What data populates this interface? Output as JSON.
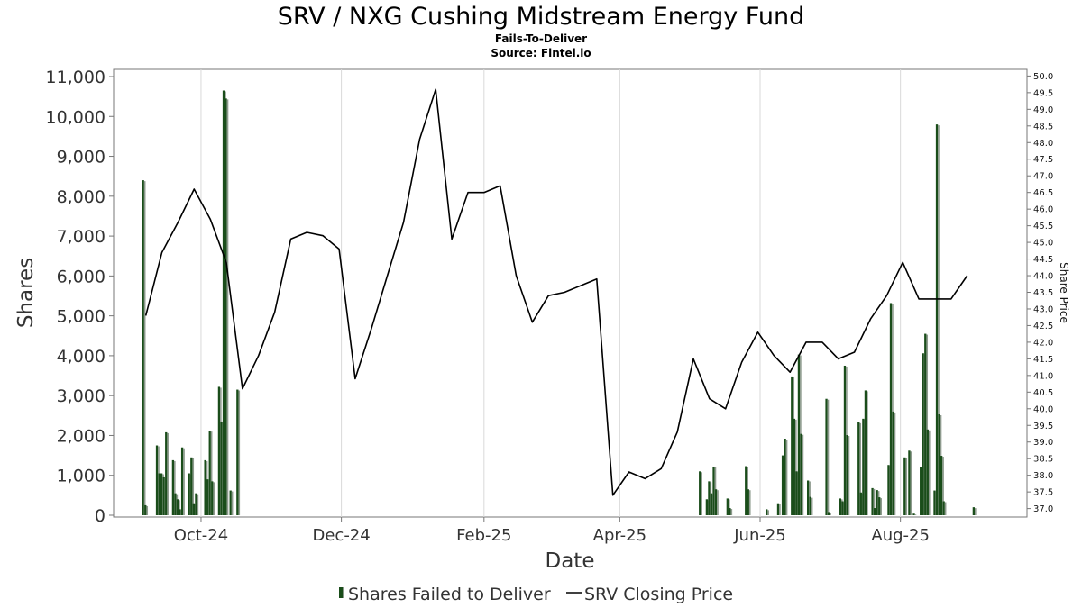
{
  "chart_data": {
    "type": "bar+line",
    "title": "SRV / NXG Cushing Midstream Energy Fund",
    "subtitle": "Fails-To-Deliver",
    "source": "Source: Fintel.io",
    "xlabel": "Date",
    "ylabel": "Shares",
    "y2label": "Share Price",
    "ylim": [
      0,
      11000
    ],
    "y2lim": [
      36.8,
      50.2
    ],
    "x_range": [
      "2024-08-24",
      "2025-09-25"
    ],
    "grid": true,
    "legend_position": "bottom",
    "x_ticks": [
      {
        "date": "2024-10-01",
        "label": "Oct-24"
      },
      {
        "date": "2024-12-01",
        "label": "Dec-24"
      },
      {
        "date": "2025-02-01",
        "label": "Feb-25"
      },
      {
        "date": "2025-04-01",
        "label": "Apr-25"
      },
      {
        "date": "2025-06-01",
        "label": "Jun-25"
      },
      {
        "date": "2025-08-01",
        "label": "Aug-25"
      }
    ],
    "y_ticks": [
      {
        "value": 0,
        "label": "0"
      },
      {
        "value": 1000,
        "label": "1,000"
      },
      {
        "value": 2000,
        "label": "2,000"
      },
      {
        "value": 3000,
        "label": "3,000"
      },
      {
        "value": 4000,
        "label": "4,000"
      },
      {
        "value": 5000,
        "label": "5,000"
      },
      {
        "value": 6000,
        "label": "6,000"
      },
      {
        "value": 7000,
        "label": "7,000"
      },
      {
        "value": 8000,
        "label": "8,000"
      },
      {
        "value": 9000,
        "label": "9,000"
      },
      {
        "value": 10000,
        "label": "10,000"
      },
      {
        "value": 11000,
        "label": "11,000"
      }
    ],
    "y2_ticks": [
      {
        "value": 37.0,
        "label": "37.0"
      },
      {
        "value": 37.5,
        "label": "37.5"
      },
      {
        "value": 38.0,
        "label": "38.0"
      },
      {
        "value": 38.5,
        "label": "38.5"
      },
      {
        "value": 39.0,
        "label": "39.0"
      },
      {
        "value": 39.5,
        "label": "39.5"
      },
      {
        "value": 40.0,
        "label": "40.0"
      },
      {
        "value": 40.5,
        "label": "40.5"
      },
      {
        "value": 41.0,
        "label": "41.0"
      },
      {
        "value": 41.5,
        "label": "41.5"
      },
      {
        "value": 42.0,
        "label": "42.0"
      },
      {
        "value": 42.5,
        "label": "42.5"
      },
      {
        "value": 43.0,
        "label": "43.0"
      },
      {
        "value": 43.5,
        "label": "43.5"
      },
      {
        "value": 44.0,
        "label": "44.0"
      },
      {
        "value": 44.5,
        "label": "44.5"
      },
      {
        "value": 45.0,
        "label": "45.0"
      },
      {
        "value": 45.5,
        "label": "45.5"
      },
      {
        "value": 46.0,
        "label": "46.0"
      },
      {
        "value": 46.5,
        "label": "46.5"
      },
      {
        "value": 47.0,
        "label": "47.0"
      },
      {
        "value": 47.5,
        "label": "47.5"
      },
      {
        "value": 48.0,
        "label": "48.0"
      },
      {
        "value": 48.5,
        "label": "48.5"
      },
      {
        "value": 49.0,
        "label": "49.0"
      },
      {
        "value": 49.5,
        "label": "49.5"
      },
      {
        "value": 50.0,
        "label": "50.0"
      }
    ],
    "series": [
      {
        "name": "Shares Failed to Deliver",
        "kind": "bar",
        "color": "#1a4d1a",
        "points": [
          [
            "2024-09-06",
            8400
          ],
          [
            "2024-09-07",
            250
          ],
          [
            "2024-09-12",
            1750
          ],
          [
            "2024-09-13",
            1050
          ],
          [
            "2024-09-14",
            1050
          ],
          [
            "2024-09-15",
            950
          ],
          [
            "2024-09-16",
            2080
          ],
          [
            "2024-09-19",
            1380
          ],
          [
            "2024-09-20",
            550
          ],
          [
            "2024-09-21",
            400
          ],
          [
            "2024-09-22",
            150
          ],
          [
            "2024-09-23",
            1700
          ],
          [
            "2024-09-26",
            1050
          ],
          [
            "2024-09-27",
            1450
          ],
          [
            "2024-09-28",
            300
          ],
          [
            "2024-09-29",
            550
          ],
          [
            "2024-10-03",
            1380
          ],
          [
            "2024-10-04",
            900
          ],
          [
            "2024-10-05",
            2120
          ],
          [
            "2024-10-06",
            850
          ],
          [
            "2024-10-09",
            3220
          ],
          [
            "2024-10-10",
            2350
          ],
          [
            "2024-10-11",
            10650
          ],
          [
            "2024-10-12",
            10450
          ],
          [
            "2024-10-14",
            620
          ],
          [
            "2024-10-17",
            3150
          ],
          [
            "2025-05-06",
            1100
          ],
          [
            "2025-05-09",
            400
          ],
          [
            "2025-05-10",
            850
          ],
          [
            "2025-05-11",
            550
          ],
          [
            "2025-05-12",
            1220
          ],
          [
            "2025-05-13",
            650
          ],
          [
            "2025-05-18",
            420
          ],
          [
            "2025-05-19",
            180
          ],
          [
            "2025-05-26",
            1230
          ],
          [
            "2025-05-27",
            650
          ],
          [
            "2025-06-04",
            150
          ],
          [
            "2025-06-09",
            300
          ],
          [
            "2025-06-11",
            1500
          ],
          [
            "2025-06-12",
            1920
          ],
          [
            "2025-06-15",
            3480
          ],
          [
            "2025-06-16",
            2420
          ],
          [
            "2025-06-17",
            1100
          ],
          [
            "2025-06-18",
            4030
          ],
          [
            "2025-06-19",
            2040
          ],
          [
            "2025-06-22",
            870
          ],
          [
            "2025-06-23",
            460
          ],
          [
            "2025-06-30",
            2920
          ],
          [
            "2025-07-01",
            80
          ],
          [
            "2025-07-06",
            420
          ],
          [
            "2025-07-07",
            350
          ],
          [
            "2025-07-08",
            3750
          ],
          [
            "2025-07-09",
            2010
          ],
          [
            "2025-07-14",
            2330
          ],
          [
            "2025-07-15",
            570
          ],
          [
            "2025-07-16",
            2420
          ],
          [
            "2025-07-17",
            3130
          ],
          [
            "2025-07-20",
            680
          ],
          [
            "2025-07-21",
            180
          ],
          [
            "2025-07-22",
            630
          ],
          [
            "2025-07-23",
            450
          ],
          [
            "2025-07-27",
            1260
          ],
          [
            "2025-07-28",
            5320
          ],
          [
            "2025-07-29",
            2600
          ],
          [
            "2025-08-03",
            1450
          ],
          [
            "2025-08-05",
            1620
          ],
          [
            "2025-08-07",
            40
          ],
          [
            "2025-08-10",
            1200
          ],
          [
            "2025-08-11",
            4060
          ],
          [
            "2025-08-12",
            4550
          ],
          [
            "2025-08-13",
            2150
          ],
          [
            "2025-08-16",
            620
          ],
          [
            "2025-08-17",
            9800
          ],
          [
            "2025-08-18",
            2530
          ],
          [
            "2025-08-19",
            1490
          ],
          [
            "2025-08-20",
            350
          ],
          [
            "2025-09-02",
            200
          ]
        ]
      },
      {
        "name": "SRV Closing Price",
        "kind": "line",
        "color": "#000000",
        "points": [
          [
            "2024-09-07",
            42.8
          ],
          [
            "2024-09-14",
            44.7
          ],
          [
            "2024-09-21",
            45.6
          ],
          [
            "2024-09-28",
            46.6
          ],
          [
            "2024-10-05",
            45.7
          ],
          [
            "2024-10-12",
            44.4
          ],
          [
            "2024-10-19",
            40.6
          ],
          [
            "2024-10-26",
            41.6
          ],
          [
            "2024-11-02",
            42.9
          ],
          [
            "2024-11-09",
            45.1
          ],
          [
            "2024-11-16",
            45.3
          ],
          [
            "2024-11-23",
            45.2
          ],
          [
            "2024-11-30",
            44.8
          ],
          [
            "2024-12-07",
            40.9
          ],
          [
            "2024-12-14",
            42.4
          ],
          [
            "2024-12-21",
            44.0
          ],
          [
            "2024-12-28",
            45.6
          ],
          [
            "2025-01-04",
            48.1
          ],
          [
            "2025-01-11",
            49.6
          ],
          [
            "2025-01-18",
            45.1
          ],
          [
            "2025-01-25",
            46.5
          ],
          [
            "2025-02-01",
            46.5
          ],
          [
            "2025-02-08",
            46.7
          ],
          [
            "2025-02-15",
            44.0
          ],
          [
            "2025-02-22",
            42.6
          ],
          [
            "2025-03-01",
            43.4
          ],
          [
            "2025-03-08",
            43.5
          ],
          [
            "2025-03-15",
            43.7
          ],
          [
            "2025-03-22",
            43.9
          ],
          [
            "2025-03-29",
            37.4
          ],
          [
            "2025-04-05",
            38.1
          ],
          [
            "2025-04-12",
            37.9
          ],
          [
            "2025-04-19",
            38.2
          ],
          [
            "2025-04-26",
            39.3
          ],
          [
            "2025-05-03",
            41.5
          ],
          [
            "2025-05-10",
            40.3
          ],
          [
            "2025-05-17",
            40.0
          ],
          [
            "2025-05-24",
            41.4
          ],
          [
            "2025-05-31",
            42.3
          ],
          [
            "2025-06-07",
            41.6
          ],
          [
            "2025-06-14",
            41.1
          ],
          [
            "2025-06-21",
            42.0
          ],
          [
            "2025-06-28",
            42.0
          ],
          [
            "2025-07-05",
            41.5
          ],
          [
            "2025-07-12",
            41.7
          ],
          [
            "2025-07-19",
            42.7
          ],
          [
            "2025-07-26",
            43.4
          ],
          [
            "2025-08-02",
            44.4
          ],
          [
            "2025-08-09",
            43.3
          ],
          [
            "2025-08-16",
            43.3
          ],
          [
            "2025-08-23",
            43.3
          ],
          [
            "2025-08-30",
            44.0
          ]
        ]
      }
    ]
  }
}
